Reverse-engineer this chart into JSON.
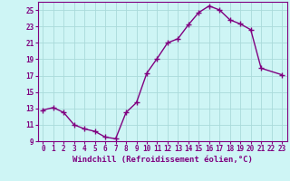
{
  "x": [
    0,
    1,
    2,
    3,
    4,
    5,
    6,
    7,
    8,
    9,
    10,
    11,
    12,
    13,
    14,
    15,
    16,
    17,
    18,
    19,
    20,
    21,
    23
  ],
  "y": [
    12.8,
    13.1,
    12.5,
    11.0,
    10.5,
    10.2,
    9.5,
    9.3,
    12.5,
    13.7,
    17.3,
    19.1,
    21.0,
    21.5,
    23.2,
    24.7,
    25.5,
    25.0,
    23.8,
    23.3,
    22.6,
    17.9,
    17.1
  ],
  "line_color": "#800080",
  "marker": "+",
  "marker_size": 4,
  "background_color": "#cef5f5",
  "grid_color": "#aadada",
  "xlabel": "Windchill (Refroidissement éolien,°C)",
  "ylim": [
    9,
    26
  ],
  "yticks": [
    9,
    11,
    13,
    15,
    17,
    19,
    21,
    23,
    25
  ],
  "xlim": [
    -0.5,
    23.5
  ],
  "xticks": [
    0,
    1,
    2,
    3,
    4,
    5,
    6,
    7,
    8,
    9,
    10,
    11,
    12,
    13,
    14,
    15,
    16,
    17,
    18,
    19,
    20,
    21,
    22,
    23
  ],
  "tick_fontsize": 5.5,
  "xlabel_fontsize": 6.5,
  "line_width": 1.0
}
